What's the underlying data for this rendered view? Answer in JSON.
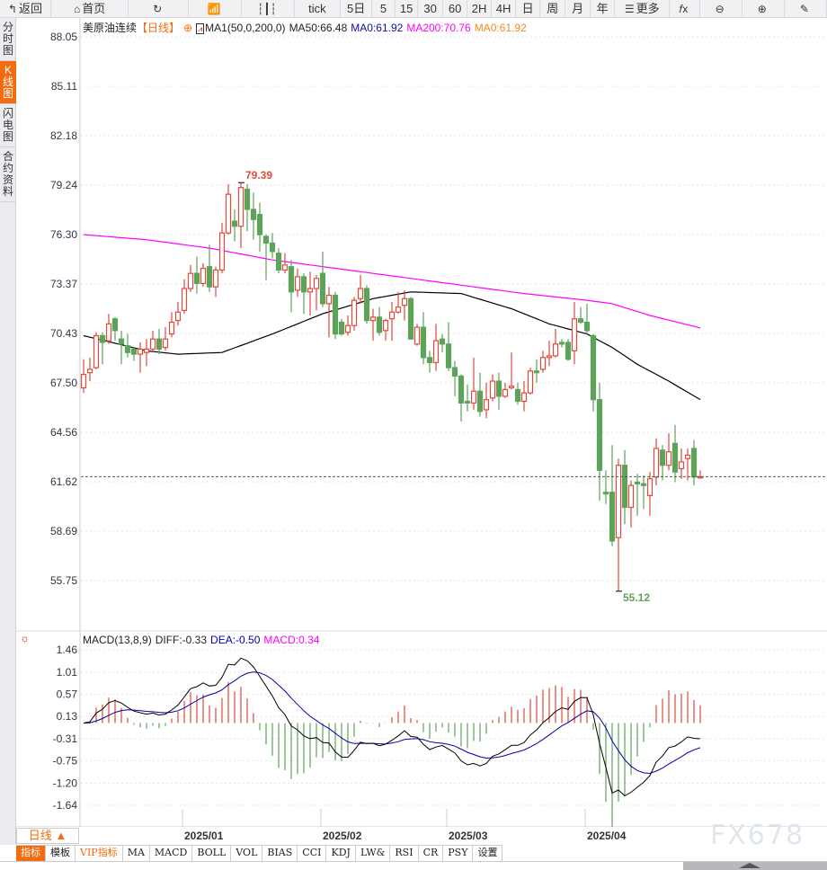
{
  "toolbar": {
    "items": [
      {
        "label": "返回",
        "icon": "back-arrow-icon"
      },
      {
        "label": "首页",
        "icon": "home-icon"
      },
      {
        "label": "",
        "icon": "refresh-icon"
      },
      {
        "label": "",
        "icon": "line-chart-icon"
      },
      {
        "label": "",
        "icon": "candlestick-icon"
      },
      {
        "label": "tick",
        "icon": ""
      },
      {
        "label": "5日",
        "icon": ""
      },
      {
        "label": "5",
        "icon": ""
      },
      {
        "label": "15",
        "icon": ""
      },
      {
        "label": "30",
        "icon": ""
      },
      {
        "label": "60",
        "icon": ""
      },
      {
        "label": "2H",
        "icon": ""
      },
      {
        "label": "4H",
        "icon": ""
      },
      {
        "label": "日",
        "icon": ""
      },
      {
        "label": "周",
        "icon": ""
      },
      {
        "label": "月",
        "icon": ""
      },
      {
        "label": "年",
        "icon": ""
      },
      {
        "label": "更多",
        "icon": "menu-icon"
      },
      {
        "label": "",
        "icon": "function-fx-icon"
      },
      {
        "label": "",
        "icon": "zoom-out-icon"
      },
      {
        "label": "",
        "icon": "zoom-in-icon"
      },
      {
        "label": "",
        "icon": "draw-pen-icon"
      }
    ]
  },
  "sidebar": [
    {
      "label": "分时图",
      "active": false
    },
    {
      "label": "K线图",
      "active": true
    },
    {
      "label": "闪电图",
      "active": false
    },
    {
      "label": "合约资料",
      "active": false
    }
  ],
  "header": {
    "instrument": "美原油连续",
    "period": "【日线】",
    "ma_label": "MA1(50,0,200,0)",
    "ma50": "MA50:66.48",
    "ma0a": "MA0:61.92",
    "ma200": "MA200:70.76",
    "ma0b": "MA0:61.92"
  },
  "macd_header": {
    "label": "MACD(13,8,9)",
    "diff": "DIFF:-0.33",
    "dea": "DEA:-0.50",
    "macd": "MACD:0.34"
  },
  "colors": {
    "up": "#e04a3c",
    "down": "#5da35a",
    "ma50": "#000000",
    "ma200": "#ff00ff",
    "diff": "#000000",
    "dea": "#0000aa",
    "last_price": "#1e7be0",
    "accent": "#f26b0f"
  },
  "chart_data": [
    {
      "type": "candlestick",
      "y_ticks": [
        "88.05",
        "85.11",
        "82.18",
        "79.24",
        "76.30",
        "73.37",
        "70.43",
        "67.50",
        "64.56",
        "61.62",
        "58.69",
        "55.75"
      ],
      "ylim": [
        55.75,
        88.05
      ],
      "x_ticks": [
        {
          "label": "2025/01",
          "at_candle": 16
        },
        {
          "label": "2025/02",
          "at_candle": 38
        },
        {
          "label": "2025/03",
          "at_candle": 58
        },
        {
          "label": "2025/04",
          "at_candle": 80
        }
      ],
      "high_label": "79.39",
      "low_label": "55.12",
      "last_price": 61.92,
      "ohlc": [
        [
          67.2,
          68.9,
          66.9,
          68.0
        ],
        [
          68.1,
          69.0,
          67.6,
          68.3
        ],
        [
          68.4,
          70.5,
          68.3,
          70.3
        ],
        [
          70.3,
          70.5,
          68.6,
          69.9
        ],
        [
          70.0,
          71.6,
          69.8,
          71.0
        ],
        [
          71.3,
          71.4,
          70.0,
          70.6
        ],
        [
          70.1,
          70.6,
          68.6,
          69.8
        ],
        [
          69.7,
          70.4,
          69.0,
          69.3
        ],
        [
          69.5,
          69.6,
          68.8,
          69.2
        ],
        [
          69.2,
          69.9,
          68.1,
          69.5
        ],
        [
          69.3,
          70.1,
          68.5,
          69.5
        ],
        [
          69.5,
          70.6,
          69.3,
          70.1
        ],
        [
          70.1,
          70.7,
          69.2,
          69.5
        ],
        [
          69.6,
          70.8,
          69.4,
          70.1
        ],
        [
          70.4,
          71.7,
          70.2,
          71.1
        ],
        [
          71.2,
          72.3,
          70.9,
          71.7
        ],
        [
          71.8,
          73.65,
          71.6,
          73.1
        ],
        [
          73.1,
          74.5,
          72.9,
          74.0
        ],
        [
          74.0,
          75.0,
          72.8,
          73.4
        ],
        [
          73.4,
          74.6,
          73.2,
          74.3
        ],
        [
          74.4,
          75.7,
          72.9,
          73.2
        ],
        [
          73.2,
          74.4,
          72.6,
          74.2
        ],
        [
          74.2,
          77.0,
          74.0,
          76.4
        ],
        [
          76.4,
          79.3,
          76.3,
          78.7
        ],
        [
          77.1,
          77.8,
          75.9,
          76.8
        ],
        [
          76.8,
          79.39,
          75.5,
          79.1
        ],
        [
          79.0,
          79.3,
          76.5,
          77.8
        ],
        [
          77.8,
          78.8,
          76.0,
          77.2
        ],
        [
          77.5,
          78.2,
          75.3,
          76.3
        ],
        [
          76.2,
          76.3,
          73.6,
          75.8
        ],
        [
          75.8,
          76.4,
          74.9,
          75.3
        ],
        [
          75.2,
          75.5,
          74.0,
          74.2
        ],
        [
          74.2,
          75.2,
          74.0,
          74.5
        ],
        [
          74.4,
          74.8,
          71.7,
          72.9
        ],
        [
          73.0,
          74.3,
          72.6,
          73.8
        ],
        [
          73.8,
          74.0,
          71.6,
          72.9
        ],
        [
          72.9,
          74.1,
          71.5,
          73.1
        ],
        [
          73.1,
          73.9,
          71.8,
          73.7
        ],
        [
          74.0,
          75.3,
          72.0,
          72.2
        ],
        [
          72.2,
          73.2,
          70.2,
          72.7
        ],
        [
          72.7,
          72.9,
          70.1,
          70.4
        ],
        [
          71.1,
          71.3,
          70.3,
          70.4
        ],
        [
          70.5,
          71.5,
          70.3,
          70.9
        ],
        [
          70.9,
          72.6,
          70.6,
          72.4
        ],
        [
          72.5,
          73.9,
          72.2,
          73.1
        ],
        [
          73.1,
          73.3,
          71.0,
          71.2
        ],
        [
          71.2,
          71.9,
          70.0,
          71.4
        ],
        [
          71.4,
          72.0,
          70.3,
          70.5
        ],
        [
          70.6,
          71.3,
          70.0,
          71.2
        ],
        [
          71.3,
          72.3,
          70.0,
          71.7
        ],
        [
          71.7,
          72.9,
          71.6,
          72.0
        ],
        [
          72.1,
          73.0,
          71.2,
          72.5
        ],
        [
          72.5,
          72.6,
          70.1,
          70.1
        ],
        [
          69.8,
          71.0,
          69.7,
          70.8
        ],
        [
          70.8,
          71.7,
          68.6,
          69.0
        ],
        [
          69.0,
          69.4,
          68.1,
          68.7
        ],
        [
          68.7,
          71.0,
          68.2,
          70.0
        ],
        [
          70.1,
          70.4,
          69.3,
          69.8
        ],
        [
          69.8,
          71.1,
          68.2,
          68.4
        ],
        [
          68.4,
          68.8,
          66.7,
          67.9
        ],
        [
          67.9,
          68.0,
          65.2,
          66.3
        ],
        [
          66.4,
          67.4,
          65.8,
          66.3
        ],
        [
          66.3,
          69.0,
          65.9,
          67.0
        ],
        [
          67.0,
          68.1,
          65.5,
          65.8
        ],
        [
          65.9,
          67.5,
          65.4,
          66.5
        ],
        [
          66.6,
          68.0,
          66.4,
          67.6
        ],
        [
          67.6,
          68.1,
          65.9,
          66.7
        ],
        [
          66.7,
          67.5,
          66.6,
          67.1
        ],
        [
          67.2,
          69.3,
          67.1,
          67.3
        ],
        [
          67.1,
          67.5,
          66.2,
          66.4
        ],
        [
          66.4,
          67.6,
          65.8,
          66.9
        ],
        [
          66.9,
          68.4,
          66.8,
          68.2
        ],
        [
          68.2,
          68.9,
          67.5,
          68.1
        ],
        [
          68.3,
          69.4,
          68.1,
          69.0
        ],
        [
          69.0,
          70.0,
          68.5,
          69.1
        ],
        [
          69.1,
          70.7,
          69.0,
          69.8
        ],
        [
          69.9,
          70.1,
          69.6,
          69.8
        ],
        [
          69.9,
          70.1,
          68.8,
          68.9
        ],
        [
          69.4,
          72.3,
          68.6,
          71.3
        ],
        [
          71.3,
          72.0,
          71.0,
          71.1
        ],
        [
          71.1,
          72.2,
          70.4,
          70.6
        ],
        [
          70.3,
          70.4,
          65.8,
          66.5
        ],
        [
          66.5,
          67.5,
          60.5,
          62.3
        ],
        [
          61.0,
          62.3,
          60.3,
          60.9
        ],
        [
          61.0,
          63.8,
          57.8,
          58.1
        ],
        [
          58.3,
          63.0,
          55.12,
          62.6
        ],
        [
          62.6,
          63.5,
          59.1,
          60.1
        ],
        [
          60.1,
          61.7,
          58.9,
          61.4
        ],
        [
          61.6,
          62.1,
          59.6,
          61.5
        ],
        [
          61.5,
          62.0,
          60.0,
          61.4
        ],
        [
          60.8,
          62.2,
          59.6,
          61.8
        ],
        [
          61.9,
          64.2,
          61.4,
          63.6
        ],
        [
          63.5,
          63.8,
          61.7,
          62.6
        ],
        [
          62.6,
          64.5,
          62.3,
          63.4
        ],
        [
          63.9,
          65.0,
          61.6,
          62.2
        ],
        [
          62.4,
          63.6,
          61.8,
          62.8
        ],
        [
          63.0,
          63.6,
          61.7,
          63.2
        ],
        [
          63.6,
          64.1,
          61.4,
          61.9
        ],
        [
          61.85,
          62.3,
          61.8,
          61.92
        ]
      ],
      "ma50": [
        [
          0,
          70.3
        ],
        [
          10,
          69.4
        ],
        [
          15,
          69.2
        ],
        [
          22,
          69.3
        ],
        [
          30,
          70.4
        ],
        [
          38,
          71.6
        ],
        [
          46,
          72.5
        ],
        [
          52,
          72.9
        ],
        [
          60,
          72.8
        ],
        [
          68,
          71.9
        ],
        [
          74,
          71.0
        ],
        [
          80,
          70.4
        ],
        [
          84,
          69.6
        ],
        [
          88,
          68.6
        ],
        [
          93,
          67.6
        ],
        [
          98,
          66.5
        ]
      ],
      "ma200": [
        [
          0,
          76.3
        ],
        [
          10,
          76.0
        ],
        [
          20,
          75.5
        ],
        [
          30,
          74.8
        ],
        [
          40,
          74.3
        ],
        [
          50,
          73.8
        ],
        [
          60,
          73.3
        ],
        [
          70,
          72.8
        ],
        [
          80,
          72.4
        ],
        [
          84,
          72.2
        ],
        [
          90,
          71.5
        ],
        [
          98,
          70.76
        ]
      ]
    },
    {
      "type": "line",
      "y_ticks": [
        "1.46",
        "1.01",
        "0.57",
        "0.13",
        "-0.31",
        "-0.75",
        "-1.20",
        "-1.64"
      ],
      "ylim": [
        -1.64,
        1.46
      ],
      "series": [
        {
          "name": "DIFF",
          "last": -0.33
        },
        {
          "name": "DEA",
          "last": -0.5
        },
        {
          "name": "MACD",
          "last": 0.34
        }
      ]
    }
  ],
  "bottom": {
    "period": "日线 ▲",
    "tabs": [
      {
        "label": "指标",
        "cls": "active"
      },
      {
        "label": "模板",
        "cls": ""
      },
      {
        "label": "VIP指标",
        "cls": "vip"
      },
      {
        "label": "MA",
        "cls": ""
      },
      {
        "label": "MACD",
        "cls": ""
      },
      {
        "label": "BOLL",
        "cls": ""
      },
      {
        "label": "VOL",
        "cls": ""
      },
      {
        "label": "BIAS",
        "cls": ""
      },
      {
        "label": "CCI",
        "cls": ""
      },
      {
        "label": "KDJ",
        "cls": ""
      },
      {
        "label": "LW&",
        "cls": ""
      },
      {
        "label": "RSI",
        "cls": ""
      },
      {
        "label": "CR",
        "cls": ""
      },
      {
        "label": "PSY",
        "cls": ""
      },
      {
        "label": "设置",
        "cls": ""
      }
    ]
  },
  "watermark": "FX678"
}
